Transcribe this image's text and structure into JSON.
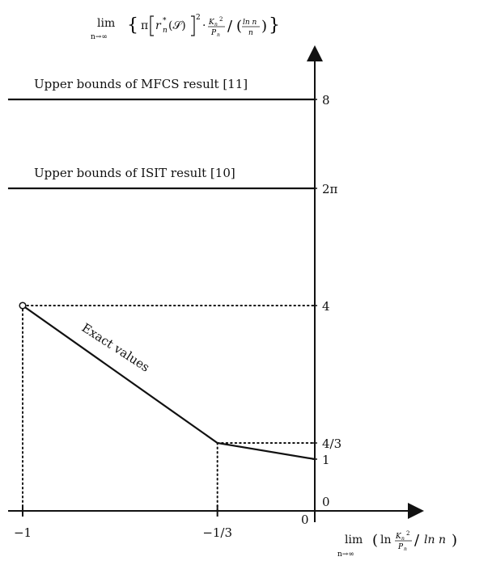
{
  "chart_data": {
    "type": "line",
    "title": "",
    "ylabel_parts": {
      "lim": "lim",
      "lim_sub": "n→∞",
      "open_brace": "{",
      "pi": "π",
      "r_text": "r",
      "r_sup": "*",
      "r_sub": "n",
      "r_arg": "(𝒮)",
      "sq": "2",
      "dot": "·",
      "frac1_num": "K",
      "frac1_num_sub": "n",
      "frac1_num_sup": "2",
      "frac1_den": "P",
      "frac1_den_sub": "n",
      "slash": "/",
      "paren_open": "(",
      "frac2_num": "ln n",
      "frac2_den": "n",
      "paren_close": ")",
      "close_brace": "}"
    },
    "xlabel_parts": {
      "lim": "lim",
      "lim_sub": "n→∞",
      "paren_open": "(",
      "ln": "ln",
      "frac_num": "K",
      "frac_num_sub": "n",
      "frac_num_sup": "2",
      "frac_den": "P",
      "frac_den_sub": "n",
      "slash": "/",
      "ln_n": "ln n",
      "paren_close": ")"
    },
    "origin_label": "0",
    "xlim": [
      -1.1,
      0.4
    ],
    "x_ticks": [
      {
        "value": -1,
        "label": "−1"
      },
      {
        "value": -0.3333,
        "label": "−1/3"
      }
    ],
    "y_ticks": [
      {
        "value": 0,
        "label": "0"
      },
      {
        "value": 1,
        "label": "1"
      },
      {
        "value": 1.3333,
        "label": "4/3"
      },
      {
        "value": 4,
        "label": "4"
      },
      {
        "value": 6.2832,
        "label": "2π"
      },
      {
        "value": 8,
        "label": "8"
      }
    ],
    "series": [
      {
        "name": "Exact values",
        "style": "solid",
        "x": [
          -1,
          -0.3333,
          0
        ],
        "y": [
          4,
          1.3333,
          1
        ],
        "open_start": true
      },
      {
        "name": "Upper bounds of ISIT result [10]",
        "style": "solid",
        "x": [
          -1.05,
          0
        ],
        "y": [
          6.2832,
          6.2832
        ]
      },
      {
        "name": "Upper bounds of MFCS result [11]",
        "style": "solid",
        "x": [
          -1.05,
          0
        ],
        "y": [
          8,
          8
        ]
      }
    ],
    "guides": [
      {
        "x": [
          -1,
          0
        ],
        "y": [
          4,
          4
        ]
      },
      {
        "x": [
          -1,
          -1
        ],
        "y": [
          0,
          4
        ]
      },
      {
        "x": [
          -0.3333,
          0
        ],
        "y": [
          1.3333,
          1.3333
        ]
      },
      {
        "x": [
          -0.3333,
          -0.3333
        ],
        "y": [
          0,
          1.3333
        ]
      }
    ],
    "grid": false,
    "legend": "inline labels"
  }
}
